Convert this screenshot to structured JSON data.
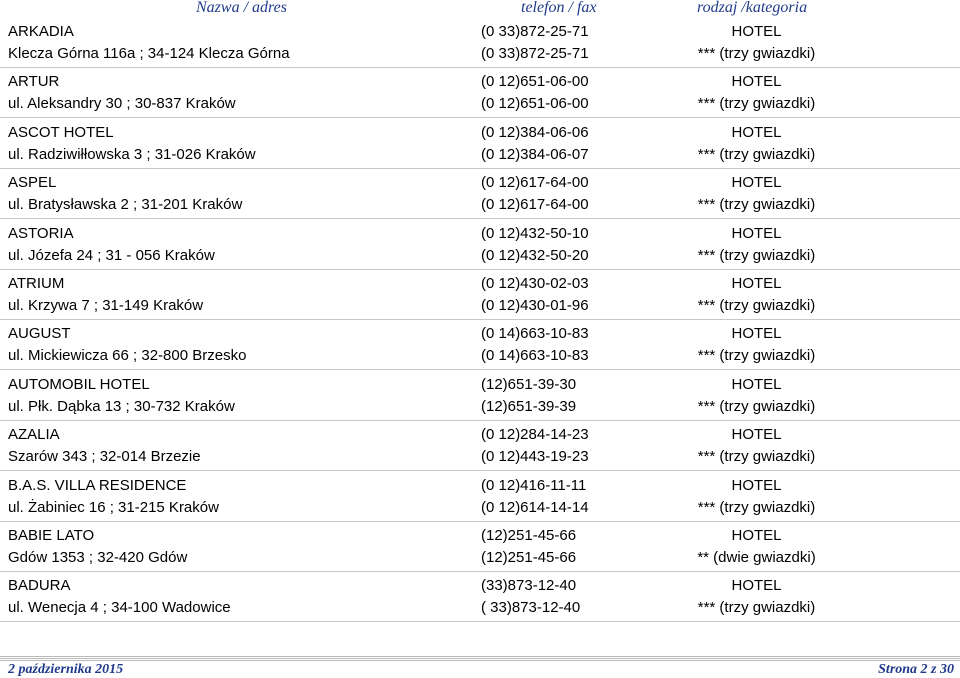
{
  "header": {
    "col_name": "Nazwa / adres",
    "col_phone": "telefon / fax",
    "col_type": "rodzaj /kategoria"
  },
  "records": [
    {
      "name": "ARKADIA",
      "address": "Klecza Górna 116a ; 34-124 Klecza Górna",
      "phone": "(0 33)872-25-71",
      "fax": "(0 33)872-25-71",
      "type": "HOTEL",
      "category": "*** (trzy gwiazdki)"
    },
    {
      "name": "ARTUR",
      "address": "ul. Aleksandry 30 ; 30-837 Kraków",
      "phone": "(0 12)651-06-00",
      "fax": "(0 12)651-06-00",
      "type": "HOTEL",
      "category": "*** (trzy gwiazdki)"
    },
    {
      "name": "ASCOT HOTEL",
      "address": "ul. Radziwiłłowska 3 ; 31-026 Kraków",
      "phone": "(0 12)384-06-06",
      "fax": "(0 12)384-06-07",
      "type": "HOTEL",
      "category": "*** (trzy gwiazdki)"
    },
    {
      "name": "ASPEL",
      "address": "ul. Bratysławska 2 ; 31-201 Kraków",
      "phone": "(0 12)617-64-00",
      "fax": "(0 12)617-64-00",
      "type": "HOTEL",
      "category": "*** (trzy gwiazdki)"
    },
    {
      "name": "ASTORIA",
      "address": "ul. Józefa 24 ; 31 - 056 Kraków",
      "phone": "(0 12)432-50-10",
      "fax": "(0 12)432-50-20",
      "type": "HOTEL",
      "category": "*** (trzy gwiazdki)"
    },
    {
      "name": "ATRIUM",
      "address": "ul. Krzywa 7 ; 31-149 Kraków",
      "phone": "(0 12)430-02-03",
      "fax": "(0 12)430-01-96",
      "type": "HOTEL",
      "category": "*** (trzy gwiazdki)"
    },
    {
      "name": "AUGUST",
      "address": "ul. Mickiewicza 66 ; 32-800 Brzesko",
      "phone": "(0 14)663-10-83",
      "fax": "(0 14)663-10-83",
      "type": "HOTEL",
      "category": "*** (trzy gwiazdki)"
    },
    {
      "name": "AUTOMOBIL HOTEL",
      "address": "ul. Płk. Dąbka 13 ; 30-732 Kraków",
      "phone": "(12)651-39-30",
      "fax": "(12)651-39-39",
      "type": "HOTEL",
      "category": "*** (trzy gwiazdki)"
    },
    {
      "name": "AZALIA",
      "address": "Szarów 343 ; 32-014 Brzezie",
      "phone": "(0 12)284-14-23",
      "fax": "(0 12)443-19-23",
      "type": "HOTEL",
      "category": "*** (trzy gwiazdki)"
    },
    {
      "name": "B.A.S. VILLA RESIDENCE",
      "address": "ul. Żabiniec 16 ; 31-215 Kraków",
      "phone": "(0 12)416-11-11",
      "fax": "(0 12)614-14-14",
      "type": "HOTEL",
      "category": "*** (trzy gwiazdki)"
    },
    {
      "name": "BABIE LATO",
      "address": "Gdów 1353 ; 32-420 Gdów",
      "phone": "(12)251-45-66",
      "fax": "(12)251-45-66",
      "type": "HOTEL",
      "category": "** (dwie gwiazdki)"
    },
    {
      "name": "BADURA",
      "address": "ul. Wenecja 4 ; 34-100 Wadowice",
      "phone": "(33)873-12-40",
      "fax": "( 33)873-12-40",
      "type": "HOTEL",
      "category": "*** (trzy gwiazdki)"
    }
  ],
  "footer": {
    "date": "2 października 2015",
    "page": "Strona 2 z 30"
  }
}
